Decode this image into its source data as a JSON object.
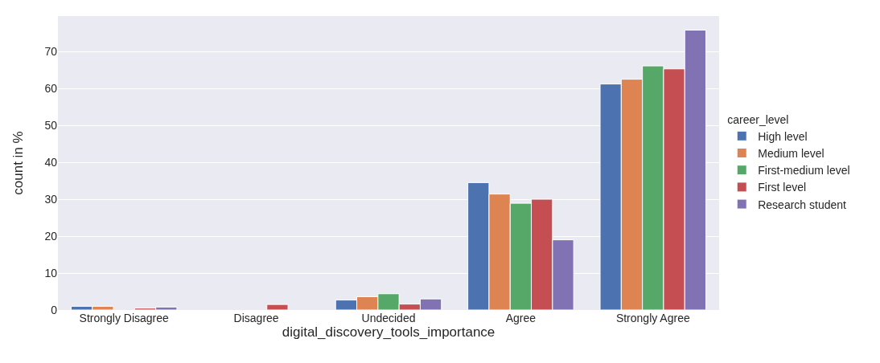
{
  "chart_data": {
    "type": "bar",
    "xlabel": "digital_discovery_tools_importance",
    "ylabel": "count in %",
    "legend_title": "career_level",
    "categories": [
      "Strongly Disagree",
      "Disagree",
      "Undecided",
      "Agree",
      "Strongly Agree"
    ],
    "series": [
      {
        "name": "High level",
        "color": "#4c72b0",
        "values": [
          1.0,
          null,
          2.7,
          34.5,
          61.2
        ]
      },
      {
        "name": "Medium level",
        "color": "#dd8452",
        "values": [
          1.0,
          null,
          3.6,
          31.4,
          62.5
        ]
      },
      {
        "name": "First-medium level",
        "color": "#55a868",
        "values": [
          null,
          null,
          4.4,
          28.9,
          66.1
        ]
      },
      {
        "name": "First level",
        "color": "#c44e52",
        "values": [
          0.5,
          1.5,
          1.6,
          30.0,
          65.3
        ]
      },
      {
        "name": "Research student",
        "color": "#8172b3",
        "values": [
          0.8,
          null,
          3.0,
          19.0,
          75.8
        ]
      }
    ],
    "ylim": [
      0,
      79.6
    ],
    "yticks": [
      0,
      10,
      20,
      30,
      40,
      50,
      60,
      70
    ],
    "grid": "y",
    "legend": "right"
  }
}
